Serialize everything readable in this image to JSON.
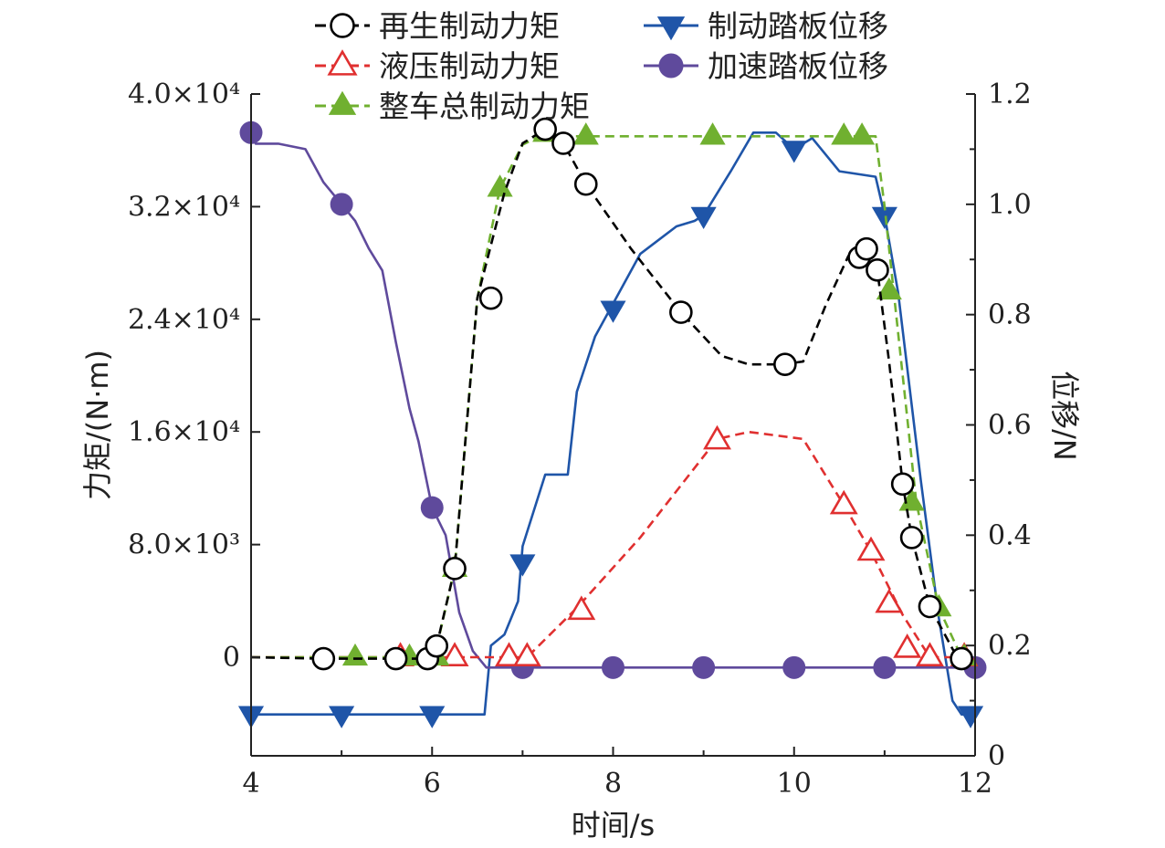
{
  "chart_data": {
    "type": "line",
    "xlabel": "时间/s",
    "ylabel_left": "力矩/(N·m)",
    "ylabel_right": "位移/N",
    "xlim": [
      4,
      12
    ],
    "ylim_left": [
      -7000,
      40000
    ],
    "ylim_right": [
      0,
      1.2
    ],
    "x_ticks": [
      {
        "value": 4,
        "label": "4"
      },
      {
        "value": 6,
        "label": "6"
      },
      {
        "value": 8,
        "label": "8"
      },
      {
        "value": 10,
        "label": "10"
      },
      {
        "value": 12,
        "label": "12"
      }
    ],
    "y_left_ticks": [
      {
        "value": 0,
        "label": "0"
      },
      {
        "value": 8000,
        "label": "8.0×10³"
      },
      {
        "value": 16000,
        "label": "1.6×10⁴"
      },
      {
        "value": 24000,
        "label": "2.4×10⁴"
      },
      {
        "value": 32000,
        "label": "3.2×10⁴"
      },
      {
        "value": 40000,
        "label": "4.0×10⁴"
      }
    ],
    "y_right_ticks": [
      {
        "value": 0,
        "label": "0"
      },
      {
        "value": 0.2,
        "label": "0.2"
      },
      {
        "value": 0.4,
        "label": "0.4"
      },
      {
        "value": 0.6,
        "label": "0.6"
      },
      {
        "value": 0.8,
        "label": "0.8"
      },
      {
        "value": 1.0,
        "label": "1.0"
      },
      {
        "value": 1.2,
        "label": "1.2"
      }
    ],
    "legend": {
      "placement": "top",
      "columns": 2
    },
    "series": [
      {
        "name": "再生制动力矩",
        "axis": "left",
        "color": "#000000",
        "marker": "circle-open",
        "line_style": "dashed",
        "x": [
          4,
          4.8,
          5.6,
          5.95,
          6.05,
          6.25,
          6.5,
          6.8,
          7.0,
          7.25,
          7.45,
          7.7,
          8.2,
          8.75,
          9.2,
          9.5,
          9.85,
          10.1,
          10.35,
          10.6,
          10.72,
          10.8,
          10.92,
          11.05,
          11.2,
          11.3,
          11.5,
          11.8,
          11.9
        ],
        "y": [
          0,
          -100,
          -100,
          -100,
          800,
          6300,
          25500,
          33000,
          36500,
          37500,
          36500,
          33600,
          29000,
          24500,
          21400,
          20800,
          20800,
          21000,
          25000,
          28500,
          28400,
          29000,
          27500,
          21000,
          12300,
          8500,
          3600,
          0,
          0
        ],
        "markers_x": [
          4.8,
          5.6,
          5.95,
          6.05,
          6.25,
          6.65,
          7.25,
          7.45,
          7.7,
          8.75,
          9.9,
          10.72,
          10.8,
          10.92,
          11.2,
          11.3,
          11.5,
          11.85
        ],
        "markers_y": [
          -100,
          -100,
          -100,
          800,
          6300,
          25500,
          37500,
          36500,
          33600,
          24500,
          20800,
          28400,
          29000,
          27500,
          12300,
          8500,
          3600,
          -100
        ]
      },
      {
        "name": "液压制动力矩",
        "axis": "left",
        "color": "#e03030",
        "marker": "triangle-open",
        "line_style": "dashed",
        "x": [
          4,
          6.75,
          7.05,
          7.6,
          8.3,
          9.15,
          9.5,
          10.1,
          10.55,
          10.85,
          11.2,
          11.5,
          11.9
        ],
        "y": [
          0,
          0,
          0,
          3500,
          8500,
          15500,
          16000,
          15500,
          10800,
          7500,
          3000,
          0,
          0
        ],
        "markers_x": [
          5.65,
          6.25,
          6.85,
          7.05,
          7.65,
          9.15,
          10.55,
          10.85,
          11.05,
          11.25,
          11.5,
          11.88
        ],
        "markers_y": [
          0,
          0,
          0,
          0,
          3300,
          15400,
          10800,
          7500,
          3800,
          600,
          0,
          0
        ]
      },
      {
        "name": "整车总制动力矩",
        "axis": "left",
        "color": "#70b030",
        "marker": "triangle-filled",
        "line_style": "dashed",
        "x": [
          4,
          5.95,
          6.05,
          6.25,
          6.5,
          6.75,
          7.0,
          7.25,
          7.5,
          8.5,
          9.5,
          10.3,
          10.9,
          11.0,
          11.1,
          11.35,
          11.6,
          11.85,
          11.95
        ],
        "y": [
          0,
          0,
          700,
          6300,
          25500,
          33300,
          36400,
          37200,
          37000,
          37000,
          37000,
          37000,
          37000,
          32000,
          26000,
          11000,
          3500,
          0,
          0
        ],
        "markers_x": [
          5.15,
          5.75,
          6.05,
          6.25,
          6.75,
          7.25,
          7.7,
          9.1,
          10.55,
          10.75,
          11.05,
          11.3,
          11.6,
          11.88
        ],
        "markers_y": [
          0,
          0,
          0,
          6300,
          33300,
          37200,
          37000,
          37000,
          37000,
          37000,
          26000,
          11000,
          3500,
          0
        ]
      },
      {
        "name": "制动踏板位移",
        "axis": "right",
        "color": "#1f55a8",
        "marker": "triangle-down-filled",
        "line_style": "solid",
        "x": [
          4,
          5.0,
          6.0,
          6.3,
          6.58,
          6.65,
          6.8,
          6.95,
          7.0,
          7.25,
          7.5,
          7.6,
          7.8,
          8.0,
          8.3,
          8.7,
          8.9,
          9.0,
          9.3,
          9.55,
          9.8,
          10.0,
          10.2,
          10.5,
          10.9,
          11.0,
          11.15,
          11.4,
          11.6,
          11.75,
          11.85,
          12.0
        ],
        "y": [
          0.075,
          0.075,
          0.075,
          0.075,
          0.075,
          0.2,
          0.22,
          0.28,
          0.38,
          0.51,
          0.51,
          0.66,
          0.76,
          0.82,
          0.91,
          0.96,
          0.97,
          0.98,
          1.06,
          1.13,
          1.13,
          1.1,
          1.12,
          1.06,
          1.05,
          0.98,
          0.84,
          0.5,
          0.25,
          0.1,
          0.075,
          0.075
        ],
        "markers_x": [
          4.0,
          5.0,
          6.0,
          7.0,
          8.0,
          9.0,
          10.0,
          11.0,
          11.95
        ],
        "markers_y": [
          0.075,
          0.075,
          0.075,
          0.35,
          0.81,
          0.98,
          1.1,
          0.98,
          0.075
        ]
      },
      {
        "name": "加速踏板位移",
        "axis": "right",
        "color": "#5f4a9c",
        "marker": "circle-filled",
        "line_style": "solid",
        "x": [
          4,
          4.05,
          4.3,
          4.6,
          4.8,
          5.0,
          5.15,
          5.3,
          5.45,
          5.6,
          5.75,
          5.85,
          6.0,
          6.15,
          6.3,
          6.45,
          6.6,
          7.0,
          12.0
        ],
        "y": [
          1.13,
          1.11,
          1.11,
          1.1,
          1.04,
          1.0,
          0.97,
          0.92,
          0.88,
          0.75,
          0.63,
          0.57,
          0.45,
          0.4,
          0.26,
          0.19,
          0.16,
          0.16,
          0.16
        ],
        "markers_x": [
          4.0,
          5.0,
          6.0,
          7.0,
          8.0,
          9.0,
          10.0,
          11.0,
          12.0
        ],
        "markers_y": [
          1.13,
          1.0,
          0.45,
          0.16,
          0.16,
          0.16,
          0.16,
          0.16,
          0.16
        ]
      }
    ]
  }
}
